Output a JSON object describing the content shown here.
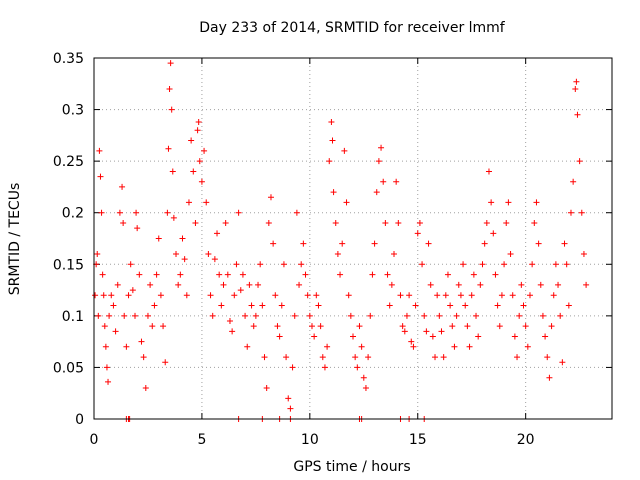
{
  "chart_data": {
    "type": "scatter",
    "title": "Day 233 of 2014, SRMTID for receiver lmmf",
    "xlabel": "GPS time / hours",
    "ylabel": "SRMTID / TECUs",
    "xlim": [
      0,
      24
    ],
    "ylim": [
      0,
      0.35
    ],
    "xticks": [
      0,
      5,
      10,
      15,
      20
    ],
    "yticks": [
      0,
      0.05,
      0.1,
      0.15,
      0.2,
      0.25,
      0.3,
      0.35
    ],
    "xtick_labels": [
      "0",
      "5",
      "10",
      "15",
      "20"
    ],
    "ytick_labels": [
      "0",
      "0.05",
      "0.1",
      "0.15",
      "0.2",
      "0.25",
      "0.3",
      "0.35"
    ],
    "grid": true,
    "marker": "+",
    "color": "#ff0000",
    "series": [
      {
        "name": "SRMTID",
        "points": [
          [
            0.05,
            0.12
          ],
          [
            0.1,
            0.15
          ],
          [
            0.15,
            0.16
          ],
          [
            0.2,
            0.1
          ],
          [
            0.25,
            0.26
          ],
          [
            0.3,
            0.235
          ],
          [
            0.35,
            0.2
          ],
          [
            0.4,
            0.14
          ],
          [
            0.45,
            0.12
          ],
          [
            0.5,
            0.09
          ],
          [
            0.55,
            0.07
          ],
          [
            0.6,
            0.05
          ],
          [
            0.65,
            0.036
          ],
          [
            0.7,
            0.1
          ],
          [
            0.8,
            0.12
          ],
          [
            0.9,
            0.11
          ],
          [
            1.0,
            0.085
          ],
          [
            1.1,
            0.13
          ],
          [
            1.2,
            0.2
          ],
          [
            1.3,
            0.225
          ],
          [
            1.35,
            0.19
          ],
          [
            1.4,
            0.1
          ],
          [
            1.5,
            0.07
          ],
          [
            1.6,
            0.12
          ],
          [
            1.7,
            0.15
          ],
          [
            1.8,
            0.125
          ],
          [
            1.9,
            0.1
          ],
          [
            1.95,
            0.2
          ],
          [
            2.0,
            0.185
          ],
          [
            2.1,
            0.14
          ],
          [
            2.2,
            0.075
          ],
          [
            2.3,
            0.06
          ],
          [
            2.4,
            0.03
          ],
          [
            2.5,
            0.1
          ],
          [
            2.6,
            0.13
          ],
          [
            2.7,
            0.09
          ],
          [
            2.8,
            0.11
          ],
          [
            2.9,
            0.14
          ],
          [
            3.0,
            0.175
          ],
          [
            3.1,
            0.12
          ],
          [
            3.2,
            0.09
          ],
          [
            3.3,
            0.055
          ],
          [
            3.4,
            0.2
          ],
          [
            3.45,
            0.262
          ],
          [
            3.5,
            0.32
          ],
          [
            3.55,
            0.345
          ],
          [
            3.6,
            0.3
          ],
          [
            3.65,
            0.24
          ],
          [
            3.7,
            0.195
          ],
          [
            3.8,
            0.16
          ],
          [
            3.9,
            0.13
          ],
          [
            4.0,
            0.14
          ],
          [
            4.1,
            0.175
          ],
          [
            4.2,
            0.155
          ],
          [
            4.3,
            0.12
          ],
          [
            4.4,
            0.21
          ],
          [
            4.5,
            0.27
          ],
          [
            4.6,
            0.24
          ],
          [
            4.7,
            0.19
          ],
          [
            4.8,
            0.28
          ],
          [
            4.85,
            0.288
          ],
          [
            4.9,
            0.25
          ],
          [
            5.0,
            0.23
          ],
          [
            5.1,
            0.26
          ],
          [
            5.2,
            0.21
          ],
          [
            5.3,
            0.16
          ],
          [
            5.4,
            0.12
          ],
          [
            5.5,
            0.1
          ],
          [
            5.6,
            0.155
          ],
          [
            5.7,
            0.18
          ],
          [
            5.8,
            0.14
          ],
          [
            5.9,
            0.11
          ],
          [
            6.0,
            0.13
          ],
          [
            6.1,
            0.19
          ],
          [
            6.2,
            0.14
          ],
          [
            6.3,
            0.095
          ],
          [
            6.4,
            0.085
          ],
          [
            6.5,
            0.12
          ],
          [
            6.6,
            0.15
          ],
          [
            6.7,
            0.2
          ],
          [
            6.8,
            0.125
          ],
          [
            6.9,
            0.14
          ],
          [
            7.0,
            0.1
          ],
          [
            7.1,
            0.07
          ],
          [
            7.2,
            0.13
          ],
          [
            7.3,
            0.11
          ],
          [
            7.4,
            0.09
          ],
          [
            7.5,
            0.1
          ],
          [
            7.6,
            0.13
          ],
          [
            7.7,
            0.15
          ],
          [
            7.8,
            0.11
          ],
          [
            7.9,
            0.06
          ],
          [
            8.0,
            0.03
          ],
          [
            8.1,
            0.19
          ],
          [
            8.2,
            0.215
          ],
          [
            8.3,
            0.17
          ],
          [
            8.4,
            0.12
          ],
          [
            8.5,
            0.09
          ],
          [
            8.6,
            0.08
          ],
          [
            8.7,
            0.11
          ],
          [
            8.8,
            0.15
          ],
          [
            8.9,
            0.06
          ],
          [
            9.0,
            0.02
          ],
          [
            9.1,
            0.01
          ],
          [
            9.2,
            0.05
          ],
          [
            9.3,
            0.1
          ],
          [
            9.4,
            0.2
          ],
          [
            9.5,
            0.13
          ],
          [
            9.6,
            0.15
          ],
          [
            9.7,
            0.17
          ],
          [
            9.8,
            0.14
          ],
          [
            9.9,
            0.12
          ],
          [
            10.0,
            0.1
          ],
          [
            10.1,
            0.09
          ],
          [
            10.2,
            0.08
          ],
          [
            10.3,
            0.12
          ],
          [
            10.4,
            0.11
          ],
          [
            10.5,
            0.09
          ],
          [
            10.6,
            0.06
          ],
          [
            10.7,
            0.05
          ],
          [
            10.8,
            0.07
          ],
          [
            10.9,
            0.25
          ],
          [
            11.0,
            0.288
          ],
          [
            11.05,
            0.27
          ],
          [
            11.1,
            0.22
          ],
          [
            11.2,
            0.19
          ],
          [
            11.3,
            0.16
          ],
          [
            11.4,
            0.14
          ],
          [
            11.5,
            0.17
          ],
          [
            11.6,
            0.26
          ],
          [
            11.7,
            0.21
          ],
          [
            11.8,
            0.12
          ],
          [
            11.9,
            0.1
          ],
          [
            12.0,
            0.08
          ],
          [
            12.1,
            0.06
          ],
          [
            12.2,
            0.05
          ],
          [
            12.3,
            0.09
          ],
          [
            12.4,
            0.07
          ],
          [
            12.5,
            0.04
          ],
          [
            12.6,
            0.03
          ],
          [
            12.7,
            0.06
          ],
          [
            12.8,
            0.1
          ],
          [
            12.9,
            0.14
          ],
          [
            13.0,
            0.17
          ],
          [
            13.1,
            0.22
          ],
          [
            13.2,
            0.25
          ],
          [
            13.3,
            0.263
          ],
          [
            13.4,
            0.23
          ],
          [
            13.5,
            0.19
          ],
          [
            13.6,
            0.14
          ],
          [
            13.7,
            0.11
          ],
          [
            13.8,
            0.13
          ],
          [
            13.9,
            0.16
          ],
          [
            14.0,
            0.23
          ],
          [
            14.1,
            0.19
          ],
          [
            14.2,
            0.12
          ],
          [
            14.3,
            0.09
          ],
          [
            14.4,
            0.085
          ],
          [
            14.5,
            0.1
          ],
          [
            14.6,
            0.12
          ],
          [
            14.7,
            0.075
          ],
          [
            14.8,
            0.07
          ],
          [
            14.9,
            0.11
          ],
          [
            15.0,
            0.18
          ],
          [
            15.1,
            0.19
          ],
          [
            15.2,
            0.15
          ],
          [
            15.3,
            0.1
          ],
          [
            15.4,
            0.085
          ],
          [
            15.5,
            0.17
          ],
          [
            15.6,
            0.13
          ],
          [
            15.7,
            0.08
          ],
          [
            15.8,
            0.06
          ],
          [
            15.9,
            0.12
          ],
          [
            16.0,
            0.1
          ],
          [
            16.1,
            0.085
          ],
          [
            16.2,
            0.06
          ],
          [
            16.3,
            0.12
          ],
          [
            16.4,
            0.14
          ],
          [
            16.5,
            0.11
          ],
          [
            16.6,
            0.09
          ],
          [
            16.7,
            0.07
          ],
          [
            16.8,
            0.1
          ],
          [
            16.9,
            0.13
          ],
          [
            17.0,
            0.12
          ],
          [
            17.1,
            0.15
          ],
          [
            17.2,
            0.11
          ],
          [
            17.3,
            0.09
          ],
          [
            17.4,
            0.07
          ],
          [
            17.5,
            0.12
          ],
          [
            17.6,
            0.14
          ],
          [
            17.7,
            0.1
          ],
          [
            17.8,
            0.08
          ],
          [
            17.9,
            0.13
          ],
          [
            18.0,
            0.15
          ],
          [
            18.1,
            0.17
          ],
          [
            18.2,
            0.19
          ],
          [
            18.3,
            0.24
          ],
          [
            18.4,
            0.21
          ],
          [
            18.5,
            0.18
          ],
          [
            18.6,
            0.14
          ],
          [
            18.7,
            0.11
          ],
          [
            18.8,
            0.09
          ],
          [
            18.9,
            0.12
          ],
          [
            19.0,
            0.15
          ],
          [
            19.1,
            0.19
          ],
          [
            19.2,
            0.21
          ],
          [
            19.3,
            0.16
          ],
          [
            19.4,
            0.12
          ],
          [
            19.5,
            0.08
          ],
          [
            19.6,
            0.06
          ],
          [
            19.7,
            0.1
          ],
          [
            19.8,
            0.13
          ],
          [
            19.9,
            0.11
          ],
          [
            20.0,
            0.09
          ],
          [
            20.1,
            0.07
          ],
          [
            20.2,
            0.12
          ],
          [
            20.3,
            0.15
          ],
          [
            20.4,
            0.19
          ],
          [
            20.5,
            0.21
          ],
          [
            20.6,
            0.17
          ],
          [
            20.7,
            0.13
          ],
          [
            20.8,
            0.1
          ],
          [
            20.9,
            0.08
          ],
          [
            21.0,
            0.06
          ],
          [
            21.1,
            0.04
          ],
          [
            21.2,
            0.09
          ],
          [
            21.3,
            0.12
          ],
          [
            21.4,
            0.15
          ],
          [
            21.5,
            0.13
          ],
          [
            21.6,
            0.1
          ],
          [
            21.7,
            0.055
          ],
          [
            21.8,
            0.17
          ],
          [
            21.9,
            0.15
          ],
          [
            22.0,
            0.11
          ],
          [
            22.1,
            0.2
          ],
          [
            22.2,
            0.23
          ],
          [
            22.3,
            0.32
          ],
          [
            22.35,
            0.327
          ],
          [
            22.4,
            0.295
          ],
          [
            22.5,
            0.25
          ],
          [
            22.6,
            0.2
          ],
          [
            22.7,
            0.16
          ],
          [
            22.8,
            0.13
          ]
        ]
      }
    ],
    "zero_points": [
      1.5,
      1.6,
      1.65,
      6.7,
      7.8,
      8.6,
      9.1,
      12.3,
      12.4,
      14.2,
      14.6,
      15.3
    ]
  }
}
